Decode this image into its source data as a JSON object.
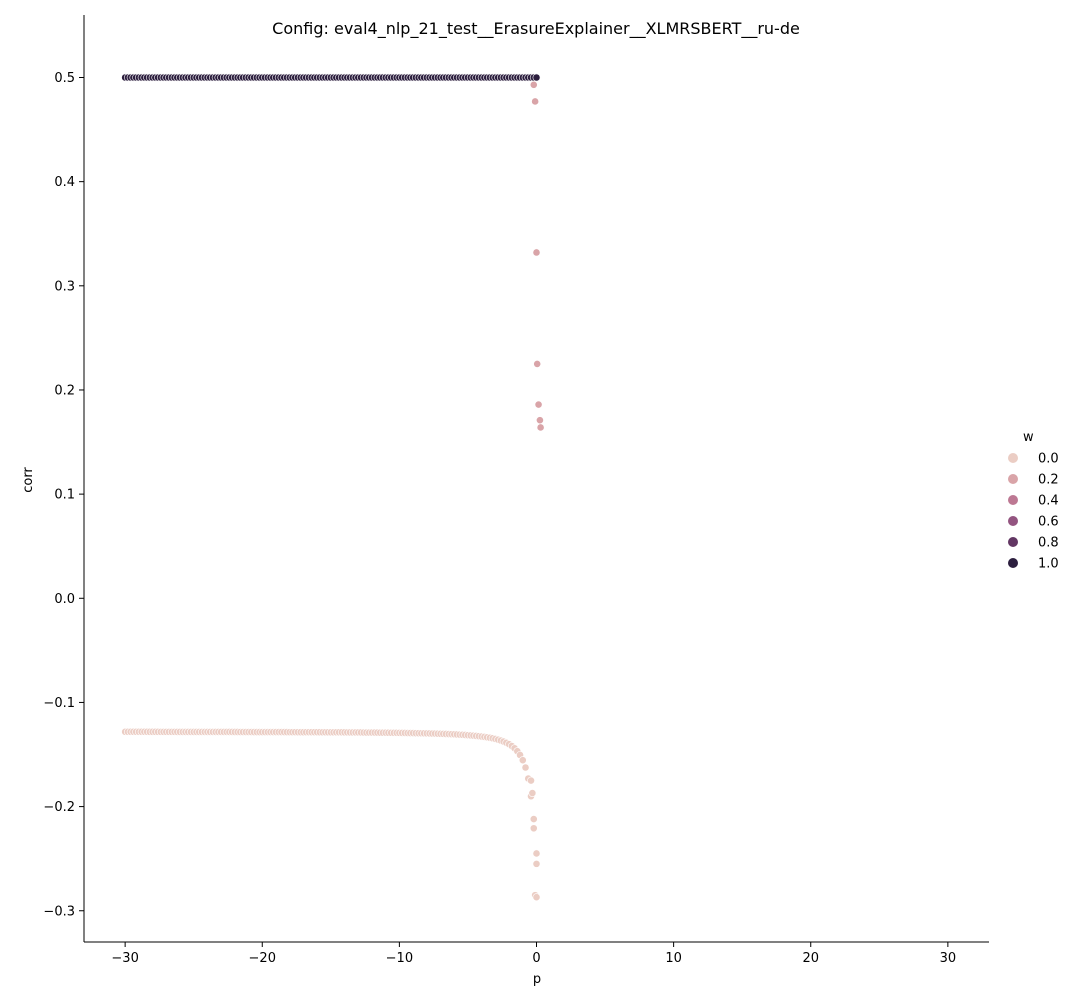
{
  "chart_data": {
    "type": "scatter",
    "title": "Config: eval4_nlp_21_test__ErasureExplainer__XLMRSBERT__ru-de",
    "xlabel": "p",
    "ylabel": "corr",
    "xlim": [
      -33,
      33
    ],
    "ylim": [
      -0.33,
      0.56
    ],
    "xticks": [
      -30,
      -20,
      -10,
      0,
      10,
      20,
      30
    ],
    "xtick_labels": [
      "−30",
      "−20",
      "−10",
      "0",
      "10",
      "20",
      "30"
    ],
    "yticks": [
      -0.3,
      -0.2,
      -0.1,
      0.0,
      0.1,
      0.2,
      0.3,
      0.4,
      0.5
    ],
    "ytick_labels": [
      "−0.3",
      "−0.2",
      "−0.1",
      "0.0",
      "0.1",
      "0.2",
      "0.3",
      "0.4",
      "0.5"
    ],
    "grid": false,
    "legend": {
      "title": "w",
      "placement": "right",
      "entries": [
        {
          "label": "0.0",
          "color": "#ebcdc4"
        },
        {
          "label": "0.2",
          "color": "#d9a4a8"
        },
        {
          "label": "0.4",
          "color": "#bd7893"
        },
        {
          "label": "0.6",
          "color": "#935480"
        },
        {
          "label": "0.8",
          "color": "#623663"
        },
        {
          "label": "1.0",
          "color": "#2c1e3e"
        }
      ]
    },
    "series": [
      {
        "w": 0.0,
        "color": "#ebcdc4",
        "shape": "neg",
        "left": -0.128,
        "right": -0.054,
        "min": -0.287
      },
      {
        "w": 0.05,
        "color": "#e6c1bb",
        "shape": "hump",
        "left": 0.5,
        "min": 0.162,
        "max": 0.224,
        "right": 0.133
      },
      {
        "w": 0.1,
        "color": "#d9a4a8",
        "shape": "decay",
        "left": 0.5,
        "max": 0.512,
        "right": 0.367
      },
      {
        "w": 0.4,
        "color": "#bd7893",
        "shape": "up",
        "left": 0.5,
        "max": 0.52,
        "right": 0.489
      },
      {
        "w": 0.6,
        "color": "#935480",
        "shape": "flat",
        "left": 0.5,
        "right": 0.509
      },
      {
        "w": 0.8,
        "color": "#623663",
        "shape": "flat",
        "left": 0.5,
        "right": 0.508
      },
      {
        "w": 1.0,
        "color": "#2c1e3e",
        "shape": "flat",
        "left": 0.5,
        "right": 0.5
      }
    ]
  }
}
